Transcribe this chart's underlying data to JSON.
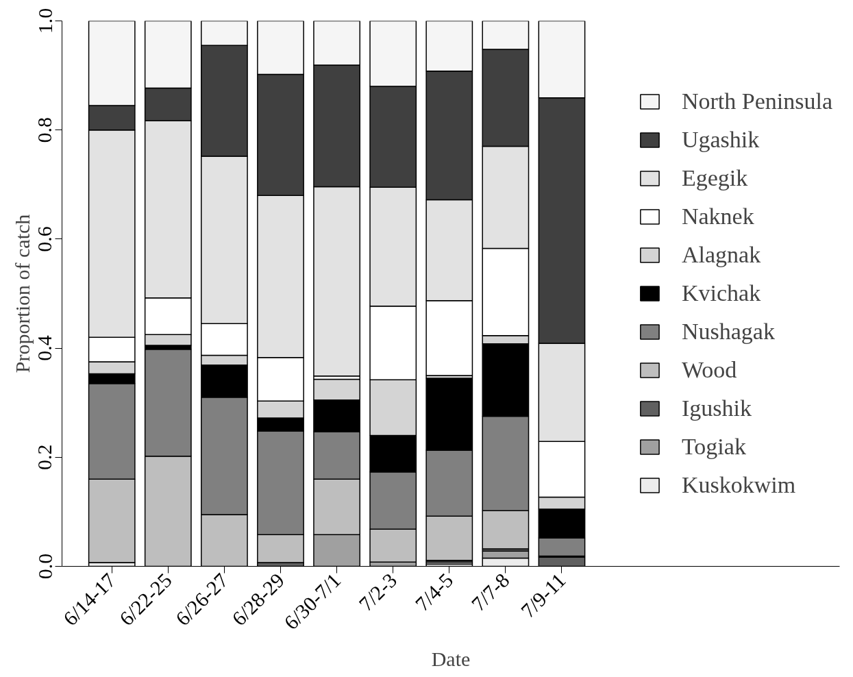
{
  "chart_data": {
    "type": "bar",
    "stacked": true,
    "xlabel": "Date",
    "ylabel": "Proportion of catch",
    "categories": [
      "6/14-17",
      "6/22-25",
      "6/26-27",
      "6/28-29",
      "6/30-7/1",
      "7/2-3",
      "7/4-5",
      "7/7-8",
      "7/9-11"
    ],
    "ylim": [
      0,
      1
    ],
    "yticks": [
      {
        "value": 0,
        "label": "0.0"
      },
      {
        "value": 0.2,
        "label": "0.2"
      },
      {
        "value": 0.4,
        "label": "0.4"
      },
      {
        "value": 0.6,
        "label": "0.6"
      },
      {
        "value": 0.8,
        "label": "0.8"
      },
      {
        "value": 1,
        "label": "1.0"
      }
    ],
    "grid": false,
    "legend": "right",
    "series": [
      {
        "name": "Kuskokwim",
        "color": "#ececec",
        "values": [
          0.007,
          0,
          0,
          0,
          0,
          0,
          0.004,
          0.015,
          0
        ]
      },
      {
        "name": "Togiak",
        "color": "#a0a0a0",
        "values": [
          0,
          0,
          0,
          0,
          0.058,
          0.008,
          0.004,
          0.013,
          0
        ]
      },
      {
        "name": "Igushik",
        "color": "#606060",
        "values": [
          0,
          0,
          0,
          0.007,
          0,
          0,
          0.003,
          0.004,
          0.017
        ]
      },
      {
        "name": "Wood",
        "color": "#bebebe",
        "values": [
          0.153,
          0.202,
          0.095,
          0.051,
          0.102,
          0.06,
          0.081,
          0.07,
          0.002
        ]
      },
      {
        "name": "Nushagak",
        "color": "#808080",
        "values": [
          0.175,
          0.196,
          0.215,
          0.19,
          0.087,
          0.105,
          0.121,
          0.173,
          0.033
        ]
      },
      {
        "name": "Kvichak",
        "color": "#000000",
        "values": [
          0.018,
          0.007,
          0.059,
          0.024,
          0.058,
          0.067,
          0.132,
          0.133,
          0.053
        ]
      },
      {
        "name": "Alagnak",
        "color": "#d4d4d4",
        "values": [
          0.022,
          0.02,
          0.018,
          0.031,
          0.038,
          0.102,
          0.005,
          0.015,
          0.022
        ]
      },
      {
        "name": "Naknek",
        "color": "#ffffff",
        "values": [
          0.045,
          0.067,
          0.058,
          0.08,
          0.006,
          0.135,
          0.137,
          0.16,
          0.102
        ]
      },
      {
        "name": "Egegik",
        "color": "#e2e2e2",
        "values": [
          0.38,
          0.325,
          0.307,
          0.297,
          0.347,
          0.218,
          0.185,
          0.187,
          0.18
        ]
      },
      {
        "name": "Ugashik",
        "color": "#404040",
        "values": [
          0.045,
          0.06,
          0.203,
          0.222,
          0.223,
          0.185,
          0.236,
          0.178,
          0.45
        ]
      },
      {
        "name": "North Peninsula",
        "color": "#f5f5f5",
        "values": [
          0.155,
          0.123,
          0.045,
          0.098,
          0.082,
          0.12,
          0.092,
          0.052,
          0.141
        ]
      }
    ]
  }
}
